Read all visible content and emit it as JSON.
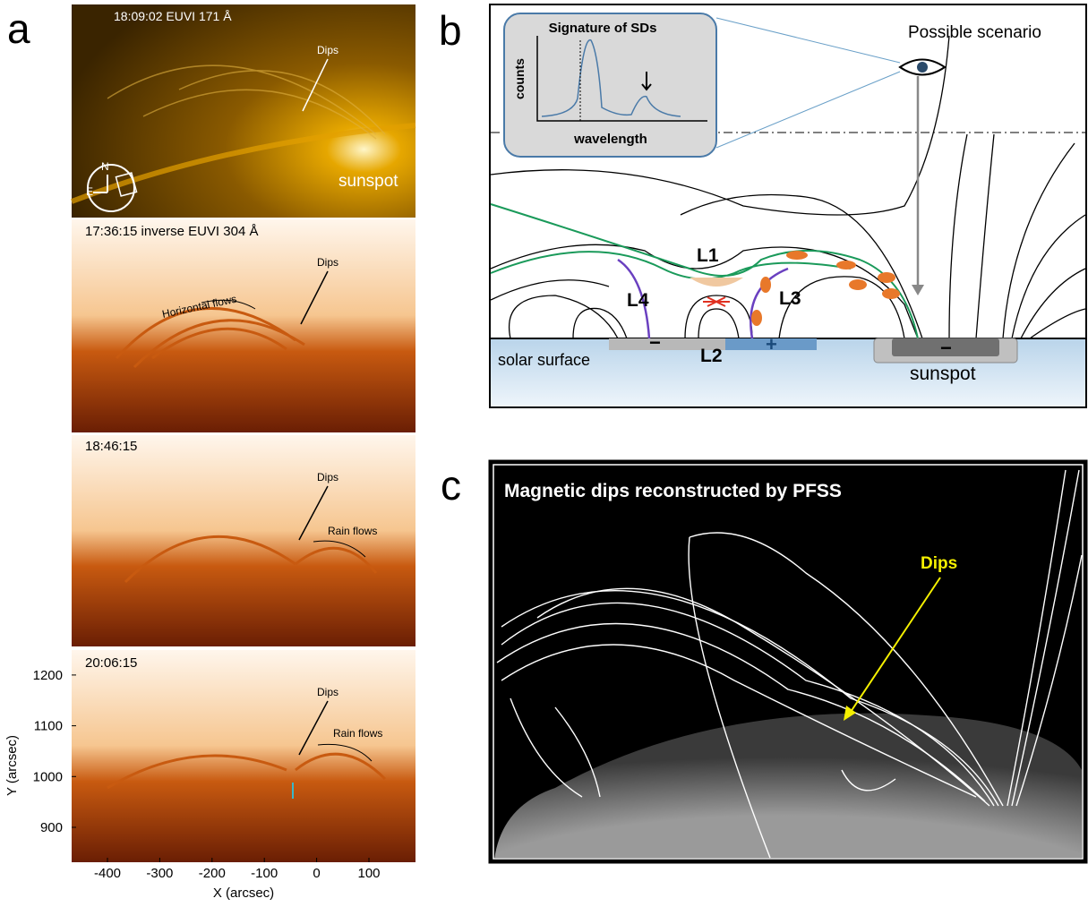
{
  "panel_a": {
    "label": "a",
    "frames": [
      {
        "time": "18:09:02  EUVI 171 Å",
        "dips": "Dips",
        "sunspot": "sunspot",
        "north": "N",
        "east": "E"
      },
      {
        "time": "17:36:15   inverse EUVI 304 Å",
        "dips": "Dips",
        "flows": "Horizontal   flows"
      },
      {
        "time": "18:46:15",
        "dips": "Dips",
        "flows": "Rain flows"
      },
      {
        "time": "20:06:15",
        "dips": "Dips",
        "flows": "Rain flows"
      }
    ],
    "axes": {
      "xlabel": "X (arcsec)",
      "ylabel": "Y (arcsec)",
      "xticks": [
        -400,
        -300,
        -200,
        -100,
        0,
        100
      ],
      "yticks": [
        900,
        1000,
        1100,
        1200
      ]
    }
  },
  "panel_b": {
    "label": "b",
    "inset_title": "Signature of SDs",
    "inset_ylabel": "counts",
    "inset_xlabel": "wavelength",
    "scenario": "Possible scenario",
    "loops": [
      "L1",
      "L2",
      "L3",
      "L4"
    ],
    "polarities": [
      "−",
      "+",
      "−"
    ],
    "surface": "solar surface",
    "sunspot": "sunspot"
  },
  "panel_c": {
    "label": "c",
    "title": "Magnetic dips reconstructed by PFSS",
    "dips": "Dips"
  }
}
